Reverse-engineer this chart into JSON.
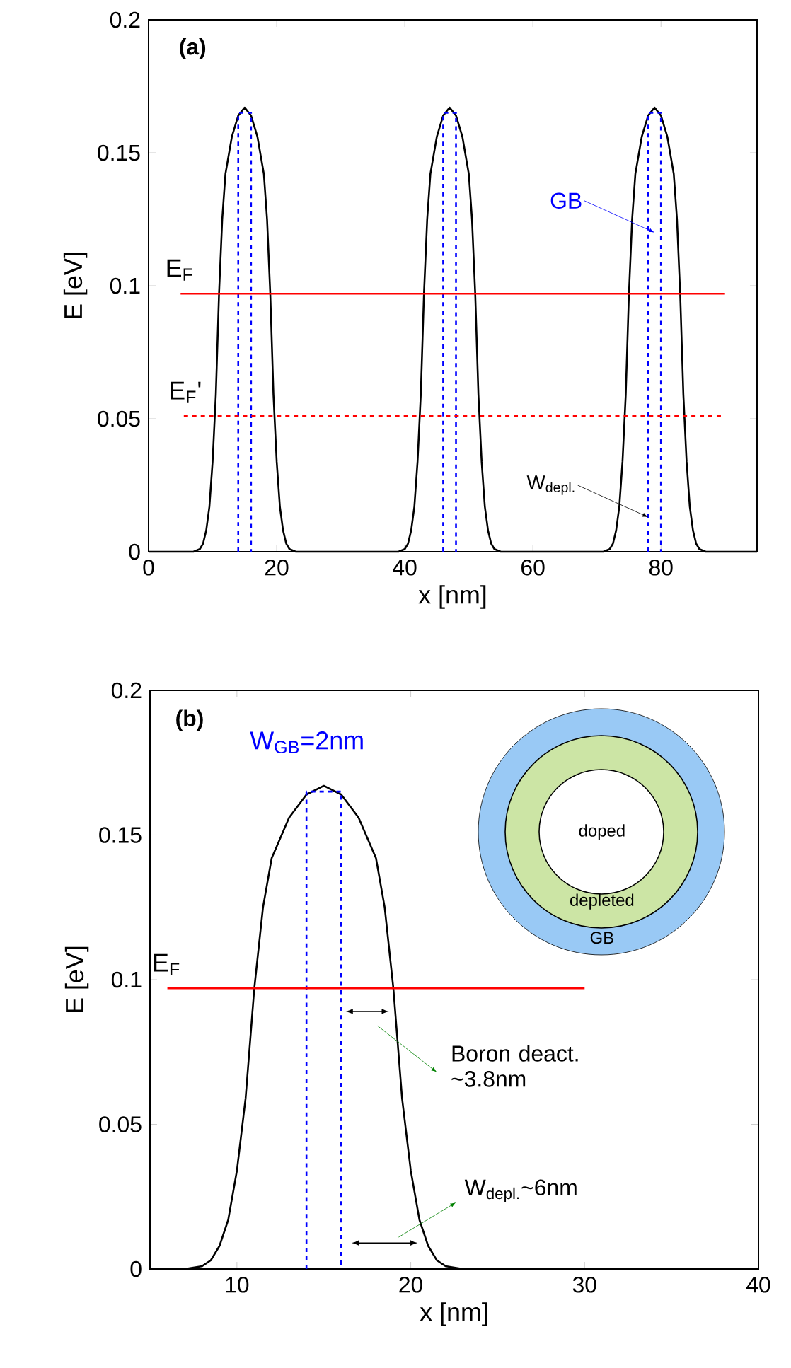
{
  "chart_data": [
    {
      "type": "line",
      "xlabel": "x [nm]",
      "ylabel": "E [eV]",
      "xlim": [
        0,
        95
      ],
      "ylim": [
        0,
        0.2
      ],
      "xticks": [
        0,
        20,
        40,
        60,
        80
      ],
      "yticks": [
        0,
        0.05,
        0.1,
        0.15,
        0.2
      ],
      "series": [
        {
          "color": "#000000",
          "line_style": "solid",
          "x": [
            0,
            7,
            8,
            8.5,
            9,
            9.5,
            10,
            10.5,
            11,
            11.5,
            12,
            13,
            14,
            15,
            16,
            17,
            18,
            18.5,
            19,
            19.5,
            20,
            20.5,
            21,
            21.5,
            22,
            23,
            39,
            40,
            40.5,
            41,
            41.5,
            42,
            42.5,
            43,
            43.5,
            44,
            45,
            46,
            47,
            48,
            49,
            50,
            50.5,
            51,
            51.5,
            52,
            52.5,
            53,
            53.5,
            54,
            55,
            71,
            72,
            72.5,
            73,
            73.5,
            74,
            74.5,
            75,
            75.5,
            76,
            77,
            78,
            79,
            80,
            81,
            82,
            82.5,
            83,
            83.5,
            84,
            84.5,
            85,
            85.5,
            86,
            87,
            95
          ],
          "values": [
            0,
            0,
            0.001,
            0.003,
            0.008,
            0.017,
            0.034,
            0.059,
            0.097,
            0.125,
            0.142,
            0.156,
            0.164,
            0.167,
            0.164,
            0.156,
            0.142,
            0.125,
            0.097,
            0.059,
            0.034,
            0.017,
            0.008,
            0.003,
            0.001,
            0,
            0,
            0.001,
            0.003,
            0.008,
            0.017,
            0.034,
            0.059,
            0.097,
            0.125,
            0.142,
            0.156,
            0.164,
            0.167,
            0.164,
            0.156,
            0.142,
            0.125,
            0.097,
            0.059,
            0.034,
            0.017,
            0.008,
            0.003,
            0.001,
            0,
            0,
            0.001,
            0.003,
            0.008,
            0.017,
            0.034,
            0.059,
            0.097,
            0.125,
            0.142,
            0.156,
            0.164,
            0.167,
            0.164,
            0.156,
            0.142,
            0.125,
            0.097,
            0.059,
            0.034,
            0.017,
            0.008,
            0.003,
            0.001,
            0,
            0
          ]
        },
        {
          "color": "#0000ff",
          "line_style": "dashed",
          "x": [
            14,
            14,
            16,
            16,
            null,
            46,
            46,
            48,
            48,
            null,
            78,
            78,
            80,
            80
          ],
          "values": [
            0,
            0.165,
            0.165,
            0,
            null,
            0,
            0.165,
            0.165,
            0,
            null,
            0,
            0.165,
            0.165,
            0
          ]
        },
        {
          "name": "E$_{F}$",
          "color": "#ff0000",
          "line_style": "solid",
          "x": [
            5,
            90
          ],
          "values": [
            0.097,
            0.097
          ]
        },
        {
          "name": "E$_{F}$'",
          "color": "#ff0000",
          "line_style": "dashed",
          "x": [
            5.5,
            90
          ],
          "values": [
            0.051,
            0.051
          ]
        }
      ],
      "annotations": [
        "(a)",
        {
          "text": "GB",
          "x": 79,
          "y": 0.12
        },
        {
          "text": "W$_{depl.}$",
          "x": 78,
          "y": 0.013
        }
      ]
    },
    {
      "type": "line",
      "xlabel": "x [nm]",
      "ylabel": "E [eV]",
      "xlim": [
        5,
        40
      ],
      "ylim": [
        0,
        0.2
      ],
      "xticks": [
        10,
        20,
        30,
        40
      ],
      "yticks": [
        0,
        0.05,
        0.1,
        0.15,
        0.2
      ],
      "series": [
        {
          "color": "#000000",
          "line_style": "solid",
          "x": [
            6,
            7,
            8,
            8.5,
            9,
            9.5,
            10,
            10.5,
            11,
            11.5,
            12,
            13,
            14,
            15,
            16,
            17,
            18,
            18.5,
            19,
            19.5,
            20,
            20.5,
            21,
            21.5,
            22,
            23,
            25
          ],
          "values": [
            0,
            0,
            0.001,
            0.003,
            0.008,
            0.017,
            0.034,
            0.059,
            0.097,
            0.125,
            0.142,
            0.156,
            0.164,
            0.167,
            0.164,
            0.156,
            0.142,
            0.125,
            0.097,
            0.059,
            0.034,
            0.017,
            0.008,
            0.003,
            0.001,
            0,
            0
          ]
        },
        {
          "color": "#0000ff",
          "line_style": "dashed",
          "x": [
            14,
            14,
            16,
            16
          ],
          "values": [
            0,
            0.165,
            0.165,
            0
          ]
        },
        {
          "name": "E$_{F}$",
          "color": "#ff0000",
          "line_style": "solid",
          "x": [
            6,
            30
          ],
          "values": [
            0.097,
            0.097
          ]
        }
      ],
      "annotations": [
        "(b)",
        "W$_{GB}$=2nm",
        "Boron deact. ~3.8nm",
        "W$_{depl.}$~6nm",
        "doped",
        "depleted",
        "GB"
      ]
    }
  ]
}
